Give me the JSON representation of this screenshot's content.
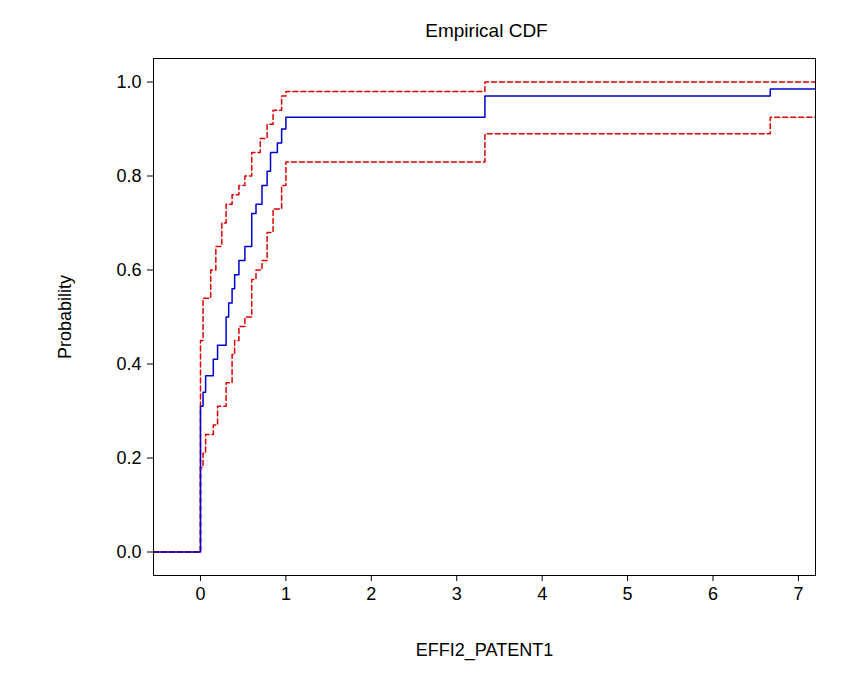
{
  "chart_data": {
    "type": "line",
    "title": "Empirical CDF",
    "x_label": "EFFI2_PATENT1",
    "y_label": "Probability",
    "x": [
      -0.55,
      0,
      0.03,
      0.06,
      0.12,
      0.15,
      0.18,
      0.2,
      0.25,
      0.3,
      0.33,
      0.37,
      0.4,
      0.45,
      0.52,
      0.6,
      0.65,
      0.7,
      0.72,
      0.78,
      0.82,
      0.85,
      0.9,
      0.95,
      1.0,
      3.33,
      6.67,
      7.2
    ],
    "series": [
      {
        "color": "#dd0000",
        "line_style": "dashed",
        "values": [
          0,
          0.45,
          0.54,
          0.54,
          0.6,
          0.6,
          0.65,
          0.65,
          0.7,
          0.74,
          0.74,
          0.76,
          0.76,
          0.78,
          0.8,
          0.85,
          0.85,
          0.88,
          0.88,
          0.91,
          0.91,
          0.94,
          0.94,
          0.97,
          0.98,
          1.0,
          1.0,
          1.0
        ]
      },
      {
        "color": "#dd0000",
        "line_style": "dashed",
        "values": [
          0,
          0.18,
          0.21,
          0.25,
          0.25,
          0.27,
          0.27,
          0.31,
          0.31,
          0.36,
          0.36,
          0.42,
          0.45,
          0.48,
          0.5,
          0.58,
          0.6,
          0.6,
          0.62,
          0.68,
          0.68,
          0.73,
          0.73,
          0.78,
          0.83,
          0.89,
          0.925,
          0.925
        ]
      },
      {
        "color": "#0000cc",
        "line_style": "solid",
        "values": [
          0,
          0.31,
          0.34,
          0.375,
          0.375,
          0.41,
          0.41,
          0.44,
          0.44,
          0.5,
          0.53,
          0.56,
          0.59,
          0.62,
          0.65,
          0.72,
          0.74,
          0.74,
          0.78,
          0.81,
          0.85,
          0.85,
          0.87,
          0.9,
          0.925,
          0.97,
          0.985,
          0.985
        ]
      }
    ],
    "xlim": [
      -0.55,
      7.2
    ],
    "ylim": [
      -0.05,
      1.05
    ],
    "xticks": [
      0,
      1,
      2,
      3,
      4,
      5,
      6,
      7
    ],
    "yticks": [
      {
        "value": 0,
        "label": "0.0"
      },
      0.2,
      0.4,
      0.6,
      0.8,
      {
        "value": 1,
        "label": "1.0"
      }
    ],
    "grid": false
  }
}
